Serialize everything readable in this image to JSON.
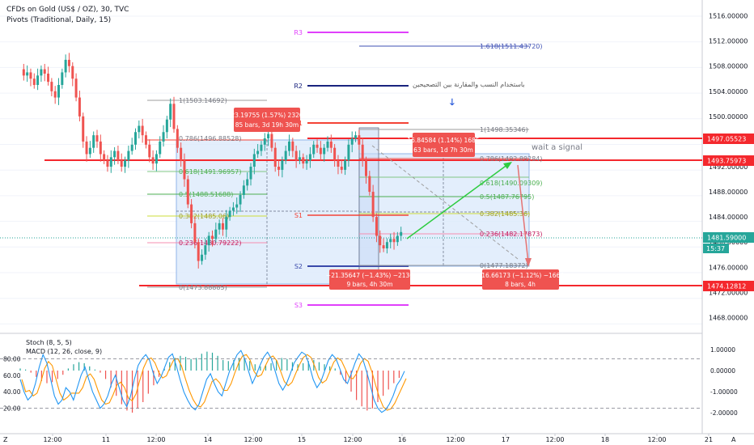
{
  "header": {
    "symbol_line": "CFDs on Gold (US$ / OZ), 30, TVC",
    "indicator_line": "Pivots (Traditional, Daily, 15)"
  },
  "colors": {
    "candle_up": "#26a69a",
    "candle_down": "#ef5350",
    "red_line": "#f4282d",
    "price_badge": "#26a69a",
    "measure_box_fill": "#dceafb",
    "measure_badge": "#ef5350",
    "pivot_r3": "#e040fb",
    "pivot_r2": "#1a237e",
    "pivot_r1_s1": "#f44336",
    "pivot_s2": "#3949ab",
    "pivot_s3": "#e040fb",
    "fib_mid": "#4caf50",
    "fib_neutral": "#9e9e9e",
    "stoch_k": "#2196f3",
    "stoch_d": "#ff9800"
  },
  "axis": {
    "price_ticks": [
      "1516.00000",
      "1512.00000",
      "1508.00000",
      "1504.00000",
      "1500.00000",
      "1496.00000",
      "1492.00000",
      "1488.00000",
      "1484.00000",
      "1480.00000",
      "1476.00000",
      "1472.00000",
      "1468.00000"
    ],
    "time_ticks": [
      "12:00",
      "11",
      "12:00",
      "14",
      "12:00",
      "15",
      "12:00",
      "16",
      "12:00",
      "17",
      "12:00",
      "18",
      "12:00",
      "21"
    ],
    "current_price": "1481.59000",
    "countdown": "15:37",
    "corner_left": "Z",
    "corner_right": "A"
  },
  "price_labels": {
    "upper_red": "1497.05523",
    "mid_red": "1493.75973",
    "lower_red": "1474.12812"
  },
  "pivots": {
    "r3": "R3",
    "r2": "R2",
    "r1": "R1",
    "s1": "S1",
    "s2": "S2",
    "s3": "S3"
  },
  "fib_left": {
    "top": "1(1503.14692)",
    "l786": "0.786(1496.88528)",
    "l618": "0.618(1491.96957)",
    "l5": "0.5(1488.51688)",
    "l382": "0.382(1485.06)",
    "l236": "0.236(1480.79222)",
    "zero": "0(1473.88885)"
  },
  "fib_right": {
    "ext": "1.618(1511.43720)",
    "top": "1(1498.35346)",
    "l786": "0.786(1492.89284)",
    "l618": "0.618(1490.09309)",
    "l5": "0.5(1487.76795)",
    "l382": "0.382(1485.36)",
    "l236": "0.236(1482.17873)",
    "zero": "0(1477.18372)"
  },
  "measures": {
    "m1_line1": "23.19755 (1.57%) 2320",
    "m1_line2": "85 bars, 3d 19h 30m",
    "m2_line1": "16.84584 (1.14%) 1685",
    "m2_line2": "63 bars, 1d 7h 30m",
    "m3_line1": "−21.35647 (−1.43%) −2136",
    "m3_line2": "9 bars, 4h 30m",
    "m4_line1": "−16.66173 (−1.12%) −1666",
    "m4_line2": "8 bars, 4h"
  },
  "annotations": {
    "arabic_note": "باستخدام النسب والمقارنة بين التصحيحين",
    "wait": "wait a signal"
  },
  "oscillator": {
    "stoch_label": "Stoch (8, 5, 5)",
    "macd_label": "MACD (12, 26, close, 9)",
    "left_ticks": [
      "80.00",
      "60.00",
      "40.00",
      "20.00"
    ],
    "right_ticks": [
      "1.00000",
      "0.00000",
      "-1.00000",
      "-2.00000"
    ]
  },
  "chart_data": {
    "type": "candlestick",
    "title": "CFDs on Gold (US$ / OZ), 30, TVC",
    "ylim": [
      1466,
      1518
    ],
    "ohlc_close_path": [
      1507.5,
      1506.5,
      1507,
      1506,
      1505,
      1506.5,
      1507.5,
      1506.8,
      1505.5,
      1504,
      1503,
      1505,
      1507,
      1509,
      1508,
      1506,
      1503,
      1500,
      1496,
      1494,
      1495,
      1497,
      1496,
      1494,
      1493,
      1492,
      1493.5,
      1494.5,
      1493,
      1492,
      1493,
      1494.5,
      1495.5,
      1497.5,
      1498.5,
      1497,
      1495.5,
      1493.5,
      1492.5,
      1494,
      1496,
      1497.5,
      1499.5,
      1502,
      1498,
      1495,
      1493,
      1490,
      1486,
      1483,
      1480,
      1477,
      1478,
      1479.5,
      1481,
      1480.5,
      1482,
      1483,
      1482,
      1484,
      1485,
      1485.5,
      1486,
      1487.5,
      1489,
      1490,
      1492,
      1494,
      1494.5,
      1495.5,
      1496.5,
      1497.2,
      1495,
      1492,
      1491.5,
      1493,
      1494.5,
      1496,
      1494.5,
      1493,
      1493.5,
      1492.5,
      1493,
      1494,
      1495.5,
      1495,
      1494,
      1495,
      1496,
      1495,
      1493,
      1492,
      1491.5,
      1493,
      1495.5,
      1496.5,
      1497,
      1495.5,
      1493,
      1490.5,
      1488,
      1484,
      1481,
      1479.5,
      1479,
      1480,
      1480.5,
      1480,
      1481,
      1481.6
    ],
    "pivot_levels": {
      "R3": 1514,
      "R2": 1505.3,
      "R1": 1498.8,
      "S1": 1485.2,
      "S2": 1477.5,
      "S3": 1471.1
    },
    "key_levels": [
      1497.05523,
      1493.75973,
      1474.12812
    ],
    "current_price": 1481.59,
    "stochastic_k": [
      55,
      40,
      30,
      35,
      50,
      70,
      85,
      75,
      55,
      35,
      25,
      30,
      45,
      40,
      30,
      45,
      60,
      70,
      55,
      40,
      30,
      20,
      25,
      35,
      50,
      60,
      45,
      30,
      22,
      35,
      55,
      72,
      80,
      85,
      78,
      62,
      50,
      58,
      70,
      82,
      86,
      72,
      55,
      40,
      30,
      22,
      18,
      25,
      40,
      55,
      62,
      50,
      40,
      35,
      50,
      65,
      75,
      85,
      90,
      80,
      65,
      50,
      60,
      72,
      82,
      88,
      80,
      65,
      50,
      42,
      50,
      62,
      75,
      82,
      88,
      85,
      72,
      55,
      45,
      52,
      65,
      78,
      85,
      80,
      68,
      55,
      50,
      62,
      75,
      86,
      80,
      65,
      48,
      30,
      20,
      15,
      18,
      25,
      35,
      48,
      55,
      65
    ],
    "macd_histogram": [
      0.1,
      0.05,
      -0.1,
      -0.3,
      -0.5,
      -0.6,
      -0.55,
      -0.4,
      -0.2,
      0.1,
      0.3,
      0.4,
      0.35,
      0.2,
      0.05,
      -0.1,
      -0.4,
      -0.8,
      -1.2,
      -1.6,
      -1.9,
      -2.0,
      -1.8,
      -1.5,
      -1.1,
      -0.7,
      -0.3,
      0.1,
      0.4,
      0.6,
      0.7,
      0.65,
      0.55,
      0.6,
      0.8,
      0.9,
      0.85,
      0.7,
      0.5,
      0.45,
      0.5,
      0.6,
      0.55,
      0.45,
      0.3,
      0.2,
      0.25,
      0.35,
      0.5,
      0.6,
      0.55,
      0.4,
      0.3,
      0.35,
      0.45,
      0.5,
      0.4,
      0.3,
      0.2,
      0.1,
      -0.2,
      -0.6,
      -1.0,
      -1.4,
      -1.7,
      -1.9,
      -1.8,
      -1.5,
      -1.2,
      -0.9,
      -0.6,
      -0.35
    ]
  }
}
